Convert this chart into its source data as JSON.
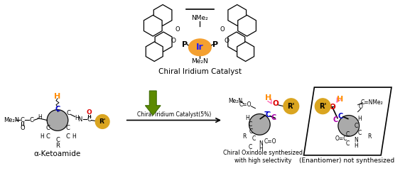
{
  "catalyst_label": "Chiral Iridium Catalyst",
  "reaction_label": "Chiral Iridium Catalyst(5%)",
  "substrate_label": "α-Ketoamide",
  "product_label": "Chiral Oxindole synthesized\nwith high selectivity",
  "enantiomer_label": "(Enantiomer) not synthesized",
  "ir_color": "#F4A030",
  "ir_text_color": "#1a1aff",
  "H_color": "#FF8C00",
  "O_color": "#DD0000",
  "C_blue_color": "#0000CC",
  "C_purple_color": "#AA00AA",
  "R_color": "#DAA520",
  "ring_color": "#AAAAAA",
  "arrow_color": "#5C8A00",
  "bg_color": "#FFFFFF"
}
